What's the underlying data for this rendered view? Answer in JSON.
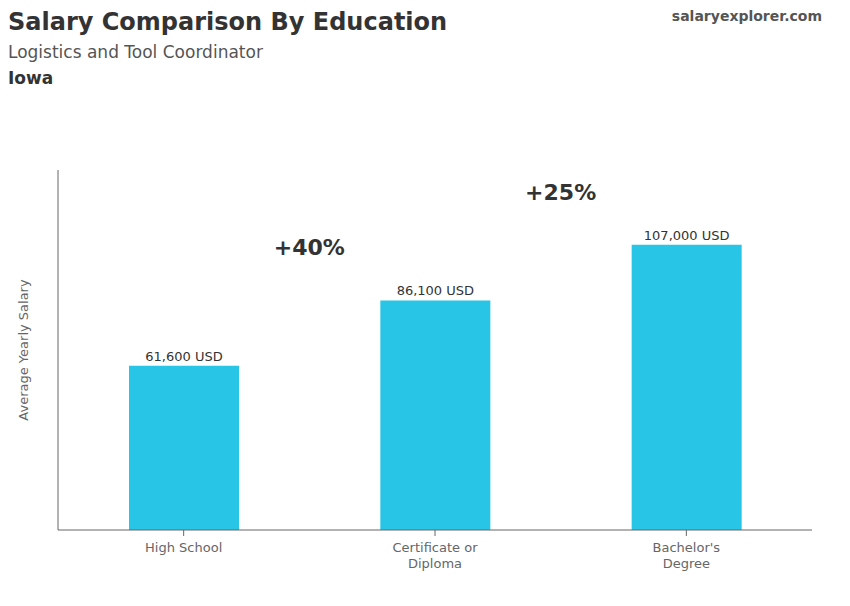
{
  "chart_data": {
    "type": "bar",
    "title": "Salary Comparison By Education",
    "subtitle": "Logistics and Tool Coordinator",
    "y_label": "Average Yearly Salary",
    "annotations": [
      "Iowa",
      "salaryexplorer.com",
      "+40%",
      "+25%"
    ],
    "categories": [
      "High School",
      "Certificate or\nDiploma",
      "Bachelor's\nDegree"
    ],
    "values": [
      61600,
      86100,
      107000
    ],
    "value_labels": [
      "61,600 USD",
      "86,100 USD",
      "107,000 USD"
    ],
    "data_labels": true,
    "color": "#29c5e6",
    "ylim": [
      0,
      135000
    ],
    "tick_labels": "x",
    "grid": false
  }
}
